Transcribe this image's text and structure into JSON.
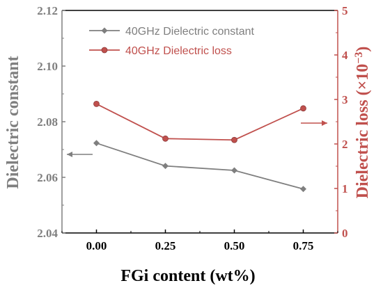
{
  "chart_data": {
    "type": "line",
    "x": [
      0.0,
      0.25,
      0.5,
      0.75
    ],
    "x_tick_labels": [
      "0.00",
      "0.25",
      "0.50",
      "0.75"
    ],
    "xlim": [
      -0.125,
      0.875
    ],
    "xlabel": "FGi content (wt%)",
    "y_left": {
      "label": "Dielectric constant",
      "ylim": [
        2.04,
        2.12
      ],
      "ticks": [
        "2.04",
        "2.06",
        "2.08",
        "2.10",
        "2.12"
      ],
      "color": "#7f7f7f"
    },
    "y_right": {
      "label_main": "Dielectric loss (×10",
      "label_sup": "−3",
      "label_end": ")",
      "ylim": [
        0,
        5
      ],
      "ticks": [
        "0",
        "1",
        "2",
        "3",
        "4",
        "5"
      ],
      "color": "#c0504d"
    },
    "series": [
      {
        "name": "40GHz Dielectric constant",
        "axis": "left",
        "values": [
          2.0723,
          2.0641,
          2.0625,
          2.0558
        ],
        "color": "#7f7f7f",
        "marker": "diamond"
      },
      {
        "name": "40GHz Dielectric loss",
        "axis": "right",
        "values": [
          2.9,
          2.12,
          2.09,
          2.8
        ],
        "color": "#c0504d",
        "marker": "circle"
      }
    ],
    "grid": false,
    "legend_position": "top-left",
    "annotations": [
      {
        "type": "arrow",
        "direction": "left",
        "points_to": "left axis",
        "color": "#7f7f7f"
      },
      {
        "type": "arrow",
        "direction": "right",
        "points_to": "right axis",
        "color": "#c0504d"
      }
    ]
  }
}
